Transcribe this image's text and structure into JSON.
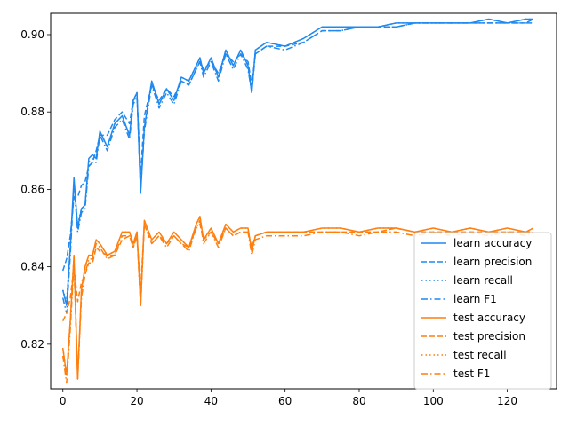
{
  "chart_data": {
    "type": "line",
    "xlim": [
      -3.3,
      133.3
    ],
    "ylim": [
      0.8085,
      0.9055
    ],
    "x_ticks": [
      0,
      20,
      40,
      60,
      80,
      100,
      120
    ],
    "y_ticks": [
      0.82,
      0.84,
      0.86,
      0.88,
      0.9
    ],
    "x_tick_labels": [
      "0",
      "20",
      "40",
      "60",
      "80",
      "100",
      "120"
    ],
    "y_tick_labels": [
      "0.82",
      "0.84",
      "0.86",
      "0.88",
      "0.90"
    ],
    "grid": false,
    "legend_position": "lower-right",
    "colors": {
      "learn": "#1f89f0",
      "test": "#ff7f0e"
    },
    "series": [
      {
        "name": "learn accuracy",
        "group": "learn",
        "style": "solid",
        "x": [
          0,
          1,
          2,
          3,
          4,
          5,
          6,
          7,
          8,
          9,
          10,
          12,
          14,
          16,
          18,
          19,
          20,
          21,
          22,
          24,
          26,
          28,
          30,
          32,
          34,
          36,
          37,
          38,
          40,
          42,
          44,
          46,
          48,
          50,
          51,
          52,
          55,
          60,
          65,
          70,
          75,
          80,
          85,
          90,
          95,
          100,
          105,
          110,
          115,
          120,
          125,
          127
        ],
        "y": [
          0.834,
          0.83,
          0.845,
          0.863,
          0.85,
          0.855,
          0.856,
          0.868,
          0.869,
          0.868,
          0.875,
          0.871,
          0.877,
          0.879,
          0.874,
          0.883,
          0.885,
          0.859,
          0.876,
          0.888,
          0.882,
          0.886,
          0.883,
          0.889,
          0.888,
          0.892,
          0.894,
          0.89,
          0.894,
          0.889,
          0.896,
          0.892,
          0.896,
          0.892,
          0.885,
          0.896,
          0.898,
          0.897,
          0.899,
          0.902,
          0.902,
          0.902,
          0.902,
          0.903,
          0.903,
          0.903,
          0.903,
          0.903,
          0.904,
          0.903,
          0.904,
          0.904
        ]
      },
      {
        "name": "learn precision",
        "group": "learn",
        "style": "dashed",
        "x": [
          0,
          1,
          2,
          3,
          4,
          5,
          6,
          7,
          8,
          9,
          10,
          12,
          14,
          16,
          18,
          19,
          20,
          21,
          22,
          24,
          26,
          28,
          30,
          32,
          34,
          36,
          37,
          38,
          40,
          42,
          44,
          46,
          48,
          50,
          51,
          52,
          55,
          60,
          65,
          70,
          75,
          80,
          85,
          90,
          95,
          100,
          105,
          110,
          115,
          120,
          125,
          127
        ],
        "y": [
          0.839,
          0.842,
          0.848,
          0.858,
          0.858,
          0.861,
          0.862,
          0.866,
          0.867,
          0.87,
          0.874,
          0.874,
          0.878,
          0.88,
          0.877,
          0.883,
          0.884,
          0.864,
          0.879,
          0.887,
          0.883,
          0.886,
          0.884,
          0.888,
          0.887,
          0.891,
          0.893,
          0.891,
          0.893,
          0.89,
          0.895,
          0.893,
          0.895,
          0.893,
          0.887,
          0.895,
          0.897,
          0.897,
          0.898,
          0.901,
          0.901,
          0.902,
          0.902,
          0.902,
          0.903,
          0.903,
          0.903,
          0.903,
          0.903,
          0.903,
          0.903,
          0.904
        ]
      },
      {
        "name": "learn recall",
        "group": "learn",
        "style": "dotted",
        "x": [
          0,
          1,
          2,
          3,
          4,
          5,
          6,
          7,
          8,
          9,
          10,
          12,
          14,
          16,
          18,
          19,
          20,
          21,
          22,
          24,
          26,
          28,
          30,
          32,
          34,
          36,
          37,
          38,
          40,
          42,
          44,
          46,
          48,
          50,
          51,
          52,
          55,
          60,
          65,
          70,
          75,
          80,
          85,
          90,
          95,
          100,
          105,
          110,
          115,
          120,
          125,
          127
        ],
        "y": [
          0.834,
          0.831,
          0.845,
          0.862,
          0.851,
          0.855,
          0.856,
          0.867,
          0.868,
          0.868,
          0.875,
          0.871,
          0.877,
          0.879,
          0.874,
          0.883,
          0.885,
          0.86,
          0.876,
          0.888,
          0.882,
          0.886,
          0.883,
          0.889,
          0.888,
          0.892,
          0.894,
          0.89,
          0.894,
          0.889,
          0.896,
          0.892,
          0.896,
          0.892,
          0.885,
          0.896,
          0.898,
          0.897,
          0.899,
          0.902,
          0.902,
          0.902,
          0.902,
          0.903,
          0.903,
          0.903,
          0.903,
          0.903,
          0.904,
          0.903,
          0.904,
          0.904
        ]
      },
      {
        "name": "learn F1",
        "group": "learn",
        "style": "dashdot",
        "x": [
          0,
          1,
          2,
          3,
          4,
          5,
          6,
          7,
          8,
          9,
          10,
          12,
          14,
          16,
          18,
          19,
          20,
          21,
          22,
          24,
          26,
          28,
          30,
          32,
          34,
          36,
          37,
          38,
          40,
          42,
          44,
          46,
          48,
          50,
          51,
          52,
          55,
          60,
          65,
          70,
          75,
          80,
          85,
          90,
          95,
          100,
          105,
          110,
          115,
          120,
          125,
          127
        ],
        "y": [
          0.832,
          0.828,
          0.843,
          0.861,
          0.849,
          0.854,
          0.855,
          0.866,
          0.867,
          0.867,
          0.874,
          0.87,
          0.876,
          0.878,
          0.873,
          0.882,
          0.884,
          0.86,
          0.875,
          0.887,
          0.881,
          0.885,
          0.882,
          0.888,
          0.887,
          0.891,
          0.893,
          0.889,
          0.893,
          0.888,
          0.895,
          0.891,
          0.895,
          0.891,
          0.885,
          0.895,
          0.897,
          0.896,
          0.898,
          0.901,
          0.901,
          0.902,
          0.902,
          0.902,
          0.903,
          0.903,
          0.903,
          0.903,
          0.903,
          0.903,
          0.903,
          0.903
        ]
      },
      {
        "name": "test accuracy",
        "group": "test",
        "style": "solid",
        "x": [
          0,
          1,
          2,
          3,
          4,
          5,
          6,
          7,
          8,
          9,
          10,
          12,
          14,
          16,
          18,
          19,
          20,
          21,
          22,
          24,
          26,
          28,
          30,
          32,
          34,
          36,
          37,
          38,
          40,
          42,
          44,
          46,
          48,
          50,
          51,
          52,
          55,
          60,
          65,
          70,
          75,
          80,
          85,
          90,
          95,
          100,
          105,
          110,
          115,
          120,
          125,
          127
        ],
        "y": [
          0.819,
          0.812,
          0.826,
          0.843,
          0.811,
          0.834,
          0.84,
          0.843,
          0.843,
          0.847,
          0.846,
          0.843,
          0.844,
          0.849,
          0.849,
          0.846,
          0.849,
          0.83,
          0.852,
          0.847,
          0.849,
          0.846,
          0.849,
          0.847,
          0.845,
          0.851,
          0.853,
          0.847,
          0.85,
          0.846,
          0.851,
          0.849,
          0.85,
          0.85,
          0.844,
          0.848,
          0.849,
          0.849,
          0.849,
          0.85,
          0.85,
          0.849,
          0.85,
          0.85,
          0.849,
          0.85,
          0.849,
          0.85,
          0.849,
          0.85,
          0.849,
          0.85
        ]
      },
      {
        "name": "test precision",
        "group": "test",
        "style": "dashed",
        "x": [
          0,
          1,
          2,
          3,
          4,
          5,
          6,
          7,
          8,
          9,
          10,
          12,
          14,
          16,
          18,
          19,
          20,
          21,
          22,
          24,
          26,
          28,
          30,
          32,
          34,
          36,
          37,
          38,
          40,
          42,
          44,
          46,
          48,
          50,
          51,
          52,
          55,
          60,
          65,
          70,
          75,
          80,
          85,
          90,
          95,
          100,
          105,
          110,
          115,
          120,
          125,
          127
        ],
        "y": [
          0.826,
          0.828,
          0.832,
          0.84,
          0.831,
          0.836,
          0.838,
          0.841,
          0.841,
          0.845,
          0.844,
          0.843,
          0.843,
          0.847,
          0.848,
          0.845,
          0.848,
          0.834,
          0.851,
          0.846,
          0.848,
          0.846,
          0.848,
          0.846,
          0.845,
          0.85,
          0.851,
          0.847,
          0.849,
          0.846,
          0.85,
          0.848,
          0.849,
          0.849,
          0.845,
          0.848,
          0.849,
          0.849,
          0.849,
          0.849,
          0.849,
          0.849,
          0.849,
          0.85,
          0.849,
          0.849,
          0.849,
          0.849,
          0.849,
          0.849,
          0.849,
          0.849
        ]
      },
      {
        "name": "test recall",
        "group": "test",
        "style": "dotted",
        "x": [
          0,
          1,
          2,
          3,
          4,
          5,
          6,
          7,
          8,
          9,
          10,
          12,
          14,
          16,
          18,
          19,
          20,
          21,
          22,
          24,
          26,
          28,
          30,
          32,
          34,
          36,
          37,
          38,
          40,
          42,
          44,
          46,
          48,
          50,
          51,
          52,
          55,
          60,
          65,
          70,
          75,
          80,
          85,
          90,
          95,
          100,
          105,
          110,
          115,
          120,
          125,
          127
        ],
        "y": [
          0.819,
          0.812,
          0.826,
          0.843,
          0.811,
          0.834,
          0.84,
          0.843,
          0.843,
          0.847,
          0.846,
          0.843,
          0.844,
          0.849,
          0.849,
          0.846,
          0.849,
          0.83,
          0.852,
          0.847,
          0.849,
          0.846,
          0.849,
          0.847,
          0.845,
          0.851,
          0.853,
          0.847,
          0.85,
          0.846,
          0.851,
          0.849,
          0.85,
          0.85,
          0.844,
          0.848,
          0.849,
          0.849,
          0.849,
          0.85,
          0.85,
          0.849,
          0.85,
          0.85,
          0.849,
          0.85,
          0.849,
          0.85,
          0.849,
          0.85,
          0.849,
          0.85
        ]
      },
      {
        "name": "test F1",
        "group": "test",
        "style": "dashdot",
        "x": [
          0,
          1,
          2,
          3,
          4,
          5,
          6,
          7,
          8,
          9,
          10,
          12,
          14,
          16,
          18,
          19,
          20,
          21,
          22,
          24,
          26,
          28,
          30,
          32,
          34,
          36,
          37,
          38,
          40,
          42,
          44,
          46,
          48,
          50,
          51,
          52,
          55,
          60,
          65,
          70,
          75,
          80,
          85,
          90,
          95,
          100,
          105,
          110,
          115,
          120,
          125,
          127
        ],
        "y": [
          0.817,
          0.81,
          0.824,
          0.841,
          0.811,
          0.832,
          0.838,
          0.842,
          0.842,
          0.846,
          0.845,
          0.842,
          0.843,
          0.848,
          0.848,
          0.845,
          0.848,
          0.83,
          0.851,
          0.846,
          0.848,
          0.845,
          0.848,
          0.846,
          0.844,
          0.85,
          0.852,
          0.846,
          0.849,
          0.845,
          0.85,
          0.848,
          0.849,
          0.849,
          0.843,
          0.847,
          0.848,
          0.848,
          0.848,
          0.849,
          0.849,
          0.848,
          0.849,
          0.849,
          0.848,
          0.849,
          0.848,
          0.849,
          0.848,
          0.849,
          0.848,
          0.849
        ]
      }
    ]
  }
}
